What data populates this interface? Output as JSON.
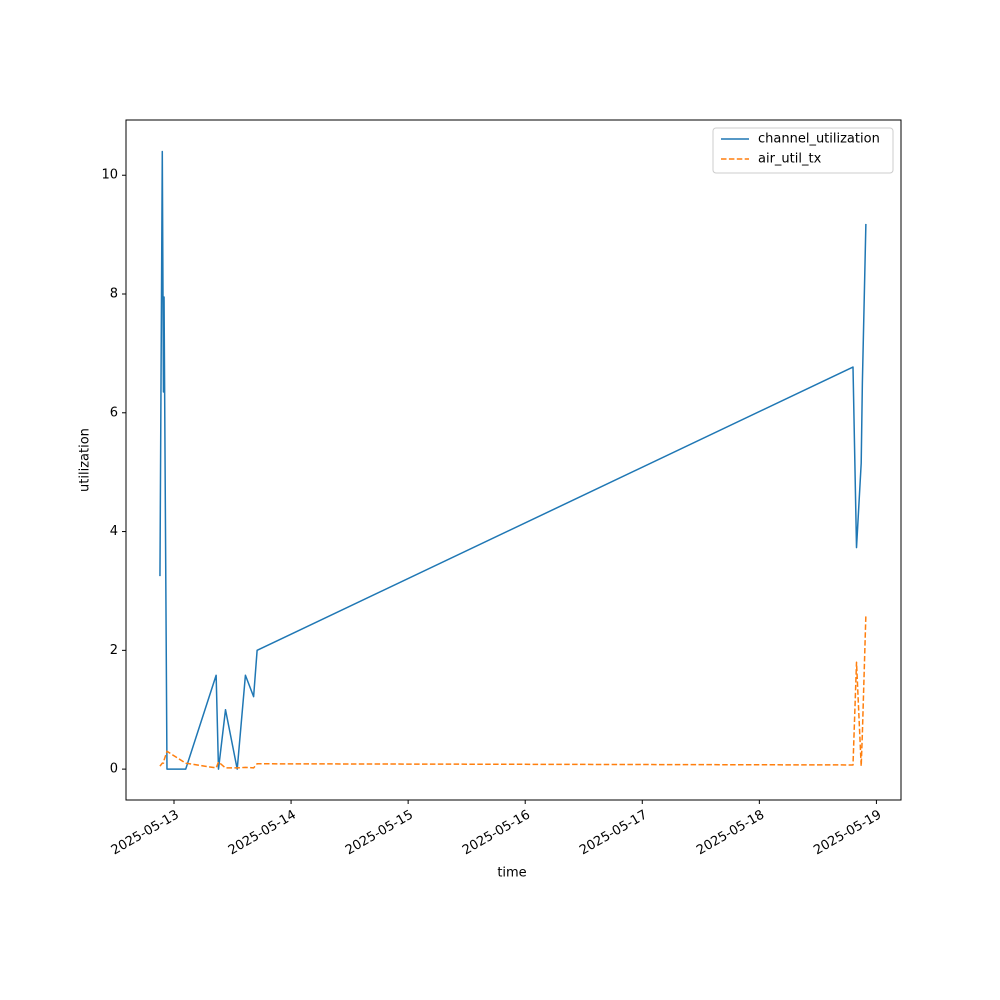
{
  "chart_data": {
    "type": "line",
    "x_label": "time",
    "y_label": "utilization",
    "x": [
      20220.88,
      20220.9,
      20220.91,
      20220.915,
      20220.94,
      20221.1,
      20221.36,
      20221.38,
      20221.44,
      20221.54,
      20221.61,
      20221.68,
      20221.71,
      20226.8,
      20226.83,
      20226.87,
      20226.88,
      20226.91
    ],
    "series": [
      {
        "name": "channel_utilization",
        "color": "#1f77b4",
        "linestyle": "solid",
        "values": [
          3.25,
          10.4,
          6.35,
          7.95,
          0,
          0,
          1.58,
          0,
          1.0,
          0,
          1.58,
          1.22,
          2.0,
          6.77,
          3.73,
          5.15,
          6.5,
          9.18
        ]
      },
      {
        "name": "air_util_tx",
        "color": "#ff7f0e",
        "linestyle": "dashed",
        "values": [
          0.05,
          0.1,
          0.1,
          0.15,
          0.3,
          0.1,
          0.02,
          0.12,
          0.02,
          0.02,
          0.03,
          0.02,
          0.09,
          0.07,
          1.8,
          0.05,
          0.6,
          2.6
        ]
      }
    ],
    "xlim": [
      20220.59,
      20227.21
    ],
    "xticks": [
      {
        "value": 20221,
        "label": "2025-05-13"
      },
      {
        "value": 20222,
        "label": "2025-05-14"
      },
      {
        "value": 20223,
        "label": "2025-05-15"
      },
      {
        "value": 20224,
        "label": "2025-05-16"
      },
      {
        "value": 20225,
        "label": "2025-05-17"
      },
      {
        "value": 20226,
        "label": "2025-05-18"
      },
      {
        "value": 20227,
        "label": "2025-05-19"
      }
    ],
    "ylim": [
      -0.52,
      10.93
    ],
    "yticks": [
      0,
      2,
      4,
      6,
      8,
      10
    ],
    "legend": "upper right"
  }
}
